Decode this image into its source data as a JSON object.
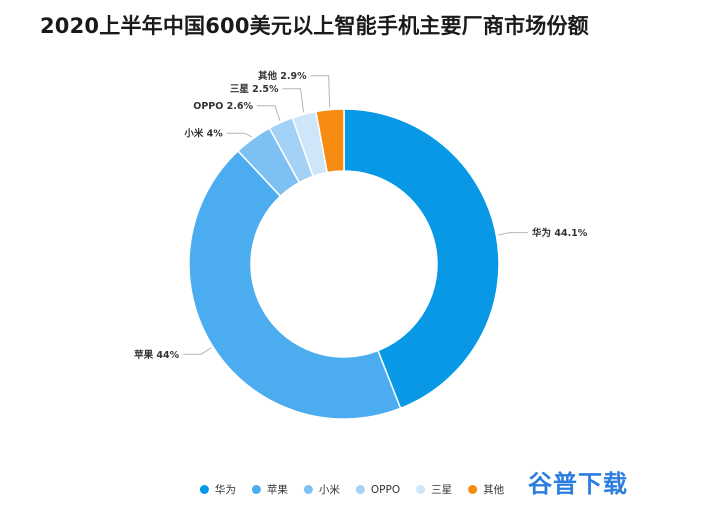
{
  "chart_data": {
    "type": "pie",
    "title": "2020上半年中国600美元以上智能手机主要厂商市场份额",
    "donut": true,
    "unit": "%",
    "slices": [
      {
        "label": "华为",
        "value": 44.1,
        "display": "华为 44.1%",
        "color": "#0998e6"
      },
      {
        "label": "苹果",
        "value": 44,
        "display": "苹果 44%",
        "color": "#4cacf0"
      },
      {
        "label": "小米",
        "value": 4,
        "display": "小米 4%",
        "color": "#7dc0f4"
      },
      {
        "label": "OPPO",
        "value": 2.6,
        "display": "OPPO 2.6%",
        "color": "#a3d2f6"
      },
      {
        "label": "三星",
        "value": 2.5,
        "display": "三星 2.5%",
        "color": "#cfe6fa"
      },
      {
        "label": "其他",
        "value": 2.9,
        "display": "其他 2.9%",
        "color": "#f68b12"
      }
    ],
    "legend_position": "bottom"
  },
  "watermark": "谷普下载"
}
